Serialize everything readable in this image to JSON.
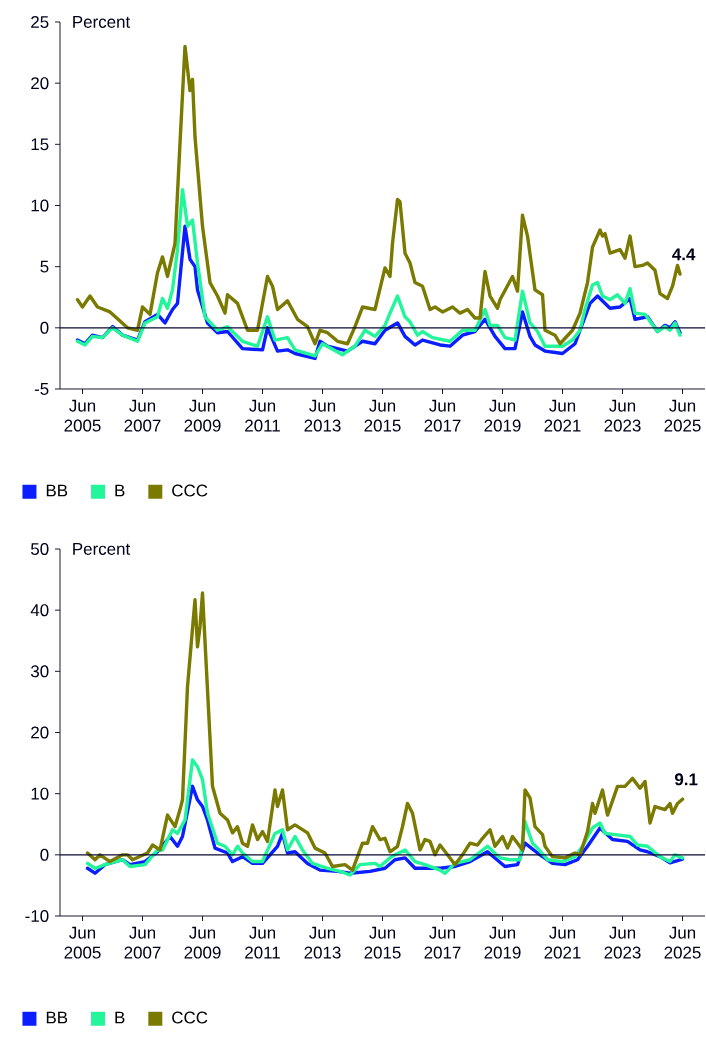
{
  "chart_data": [
    {
      "type": "line",
      "ylabel": "Percent",
      "legend": "bottom",
      "xlim": [
        "2004-09",
        "2026-03"
      ],
      "ylim": [
        -5,
        25
      ],
      "yticks": [
        -5,
        0,
        5,
        10,
        15,
        20,
        25
      ],
      "xticks": [
        {
          "value": "2005-06",
          "label": "Jun 2005"
        },
        {
          "value": "2007-06",
          "label": "Jun 2007"
        },
        {
          "value": "2009-06",
          "label": "Jun 2009"
        },
        {
          "value": "2011-06",
          "label": "Jun 2011"
        },
        {
          "value": "2013-06",
          "label": "Jun 2013"
        },
        {
          "value": "2015-06",
          "label": "Jun 2015"
        },
        {
          "value": "2017-06",
          "label": "Jun 2017"
        },
        {
          "value": "2019-06",
          "label": "Jun 2019"
        },
        {
          "value": "2021-06",
          "label": "Jun 2021"
        },
        {
          "value": "2023-06",
          "label": "Jun 2023"
        },
        {
          "value": "2025-06",
          "label": "Jun 2025"
        }
      ],
      "ref_lines": [
        {
          "axis": "y",
          "value": 0,
          "color": "#0a0a32"
        }
      ],
      "annotations": [
        {
          "text": "4.4",
          "x": "2025-05",
          "y": 4.4
        }
      ],
      "series": [
        {
          "name": "BB",
          "color": "#0a1eff",
          "x": [
            "2005-04",
            "2005-07",
            "2005-10",
            "2006-02",
            "2006-06",
            "2006-10",
            "2007-04",
            "2007-07",
            "2007-12",
            "2008-03",
            "2008-06",
            "2008-08",
            "2008-11",
            "2009-01",
            "2009-03",
            "2009-04",
            "2009-08",
            "2009-12",
            "2010-04",
            "2010-10",
            "2011-06",
            "2011-08",
            "2011-12",
            "2012-04",
            "2012-07",
            "2013-03",
            "2013-05",
            "2013-08",
            "2014-04",
            "2014-10",
            "2015-03",
            "2015-07",
            "2015-12",
            "2016-03",
            "2016-07",
            "2016-10",
            "2017-05",
            "2017-09",
            "2018-02",
            "2018-07",
            "2018-11",
            "2019-03",
            "2019-07",
            "2019-11",
            "2020-02",
            "2020-05",
            "2020-07",
            "2020-11",
            "2021-06",
            "2021-11",
            "2022-03",
            "2022-05",
            "2022-08",
            "2023-01",
            "2023-05",
            "2023-09",
            "2023-11",
            "2024-04",
            "2024-08",
            "2024-11",
            "2025-01",
            "2025-03",
            "2025-05"
          ],
          "values": [
            -1.0,
            -1.3,
            -0.6,
            -0.8,
            0.1,
            -0.6,
            -1.0,
            0.5,
            1.1,
            0.4,
            1.5,
            2.0,
            8.3,
            5.6,
            5.0,
            3.1,
            0.4,
            -0.4,
            -0.3,
            -1.7,
            -1.8,
            0,
            -1.9,
            -1.8,
            -2.1,
            -2.5,
            -1.1,
            -1.5,
            -1.9,
            -1.1,
            -1.3,
            -0.2,
            0.4,
            -0.7,
            -1.4,
            -1.0,
            -1.4,
            -1.5,
            -0.6,
            -0.3,
            0.7,
            -0.7,
            -1.7,
            -1.7,
            1.3,
            -0.7,
            -1.4,
            -1.9,
            -2.1,
            -1.3,
            0.9,
            2.0,
            2.6,
            1.6,
            1.7,
            2.4,
            0.7,
            0.9,
            -0.3,
            0.2,
            0,
            0.5,
            -0.4
          ]
        },
        {
          "name": "B",
          "color": "#22f59a",
          "x": [
            "2005-04",
            "2005-07",
            "2005-10",
            "2006-02",
            "2006-06",
            "2006-10",
            "2007-04",
            "2007-07",
            "2007-12",
            "2008-02",
            "2008-04",
            "2008-06",
            "2008-08",
            "2008-10",
            "2008-12",
            "2009-02",
            "2009-04",
            "2009-07",
            "2009-12",
            "2010-04",
            "2010-10",
            "2011-04",
            "2011-08",
            "2011-11",
            "2012-04",
            "2012-07",
            "2013-03",
            "2013-06",
            "2014-02",
            "2014-07",
            "2014-11",
            "2015-03",
            "2015-07",
            "2015-09",
            "2015-12",
            "2016-03",
            "2016-05",
            "2016-08",
            "2016-10",
            "2017-02",
            "2017-09",
            "2018-02",
            "2018-07",
            "2018-11",
            "2019-01",
            "2019-04",
            "2019-07",
            "2019-11",
            "2020-02",
            "2020-05",
            "2020-08",
            "2020-11",
            "2021-06",
            "2021-10",
            "2022-01",
            "2022-03",
            "2022-06",
            "2022-08",
            "2022-10",
            "2023-01",
            "2023-04",
            "2023-07",
            "2023-09",
            "2023-11",
            "2024-03",
            "2024-08",
            "2024-11",
            "2025-01",
            "2025-03",
            "2025-05"
          ],
          "values": [
            -1.1,
            -1.4,
            -0.7,
            -0.8,
            0,
            -0.6,
            -1.1,
            0.4,
            0.9,
            2.4,
            1.6,
            3.1,
            6.4,
            11.3,
            8.3,
            8.8,
            5.3,
            0.9,
            -0.2,
            0.1,
            -1.1,
            -1.5,
            0.9,
            -1.0,
            -0.8,
            -1.8,
            -2.3,
            -1.3,
            -2.2,
            -1.5,
            -0.2,
            -0.7,
            0.2,
            1.2,
            2.6,
            0.9,
            0.5,
            -0.6,
            -0.3,
            -0.8,
            -1.1,
            -0.2,
            -0.2,
            1.5,
            0.2,
            0.2,
            -0.8,
            -1.0,
            3.0,
            0.4,
            -0.3,
            -1.5,
            -1.5,
            -1.0,
            -0.2,
            1.5,
            3.5,
            3.7,
            2.6,
            2.3,
            2.7,
            2.0,
            3.2,
            1.2,
            1.1,
            -0.3,
            0.1,
            -0.2,
            0.4,
            -0.6
          ]
        },
        {
          "name": "CCC",
          "color": "#7a7a00",
          "x": [
            "2005-04",
            "2005-06",
            "2005-09",
            "2005-12",
            "2006-05",
            "2006-12",
            "2007-04",
            "2007-06",
            "2007-09",
            "2007-12",
            "2008-02",
            "2008-04",
            "2008-07",
            "2008-09",
            "2008-11",
            "2009-01",
            "2009-02",
            "2009-03",
            "2009-06",
            "2009-09",
            "2009-12",
            "2010-03",
            "2010-04",
            "2010-08",
            "2010-12",
            "2011-04",
            "2011-08",
            "2011-10",
            "2011-12",
            "2012-04",
            "2012-08",
            "2012-12",
            "2013-03",
            "2013-05",
            "2013-08",
            "2013-12",
            "2014-04",
            "2014-07",
            "2014-10",
            "2015-03",
            "2015-07",
            "2015-09",
            "2015-10",
            "2015-12",
            "2016-01",
            "2016-03",
            "2016-05",
            "2016-07",
            "2016-10",
            "2017-01",
            "2017-03",
            "2017-06",
            "2017-10",
            "2018-01",
            "2018-04",
            "2018-07",
            "2018-09",
            "2018-11",
            "2019-01",
            "2019-04",
            "2019-05",
            "2019-10",
            "2019-12",
            "2020-02",
            "2020-04",
            "2020-07",
            "2020-10",
            "2020-11",
            "2021-03",
            "2021-05",
            "2021-10",
            "2022-01",
            "2022-04",
            "2022-06",
            "2022-09",
            "2022-10",
            "2022-11",
            "2023-01",
            "2023-05",
            "2023-07",
            "2023-09",
            "2023-11",
            "2024-02",
            "2024-04",
            "2024-07",
            "2024-09",
            "2024-12",
            "2025-02",
            "2025-04",
            "2025-05"
          ],
          "values": [
            2.3,
            1.7,
            2.6,
            1.7,
            1.3,
            0,
            -0.2,
            1.7,
            1.1,
            4.5,
            5.8,
            4.2,
            6.9,
            15.1,
            23.0,
            19.4,
            20.3,
            15.6,
            8.3,
            3.7,
            2.6,
            1.2,
            2.7,
            2.0,
            -0.2,
            -0.2,
            4.2,
            3.4,
            1.5,
            2.2,
            0.7,
            0.1,
            -1.3,
            -0.2,
            -0.4,
            -1.1,
            -1.3,
            0.1,
            1.7,
            1.5,
            4.9,
            4.2,
            6.9,
            10.5,
            10.3,
            6.1,
            5.3,
            3.7,
            3.4,
            1.5,
            1.7,
            1.3,
            1.7,
            1.2,
            1.5,
            0.8,
            0.8,
            4.6,
            2.6,
            1.6,
            2.3,
            4.2,
            3.0,
            9.2,
            7.5,
            3.1,
            2.7,
            -0.2,
            -0.6,
            -1.3,
            -0.2,
            1.2,
            3.7,
            6.6,
            8.0,
            7.5,
            7.7,
            6.1,
            6.4,
            5.7,
            7.5,
            5.0,
            5.1,
            5.3,
            4.7,
            2.8,
            2.4,
            3.4,
            5.1,
            4.4
          ]
        }
      ]
    },
    {
      "type": "line",
      "ylabel": "Percent",
      "legend": "bottom",
      "xlim": [
        "2004-09",
        "2026-03"
      ],
      "ylim": [
        -10,
        50
      ],
      "yticks": [
        -10,
        0,
        10,
        20,
        30,
        40,
        50
      ],
      "xticks": [
        {
          "value": "2005-06",
          "label": "Jun 2005"
        },
        {
          "value": "2007-06",
          "label": "Jun 2007"
        },
        {
          "value": "2009-06",
          "label": "Jun 2009"
        },
        {
          "value": "2011-06",
          "label": "Jun 2011"
        },
        {
          "value": "2013-06",
          "label": "Jun 2013"
        },
        {
          "value": "2015-06",
          "label": "Jun 2015"
        },
        {
          "value": "2017-06",
          "label": "Jun 2017"
        },
        {
          "value": "2019-06",
          "label": "Jun 2019"
        },
        {
          "value": "2021-06",
          "label": "Jun 2021"
        },
        {
          "value": "2023-06",
          "label": "Jun 2023"
        },
        {
          "value": "2025-06",
          "label": "Jun 2025"
        }
      ],
      "ref_lines": [
        {
          "axis": "y",
          "value": 0,
          "color": "#0a0a32"
        }
      ],
      "annotations": [
        {
          "text": "9.1",
          "x": "2025-06",
          "y": 9.1
        }
      ],
      "series": [
        {
          "name": "BB",
          "color": "#0a1eff",
          "x": [
            "2005-08",
            "2005-11",
            "2006-03",
            "2006-10",
            "2007-01",
            "2007-07",
            "2007-12",
            "2008-05",
            "2008-08",
            "2008-10",
            "2009-02",
            "2009-04",
            "2009-06",
            "2009-08",
            "2009-11",
            "2010-04",
            "2010-06",
            "2010-10",
            "2011-02",
            "2011-06",
            "2011-12",
            "2012-02",
            "2012-04",
            "2012-07",
            "2012-12",
            "2013-05",
            "2013-12",
            "2014-05",
            "2015-01",
            "2015-07",
            "2015-11",
            "2016-03",
            "2016-07",
            "2016-11",
            "2017-05",
            "2017-11",
            "2018-05",
            "2018-12",
            "2019-07",
            "2019-12",
            "2020-03",
            "2020-08",
            "2021-02",
            "2021-07",
            "2021-12",
            "2022-04",
            "2022-09",
            "2023-02",
            "2023-08",
            "2024-01",
            "2024-04",
            "2024-09",
            "2025-01",
            "2025-06"
          ],
          "values": [
            -2.2,
            -3.0,
            -1.6,
            -0.8,
            -1.6,
            -1.1,
            0.5,
            3.0,
            1.4,
            3.0,
            11.2,
            9.0,
            7.9,
            5.7,
            1.1,
            0.3,
            -1.1,
            -0.3,
            -1.4,
            -1.4,
            1.4,
            3.5,
            0.3,
            0.5,
            -1.4,
            -2.5,
            -2.7,
            -3.0,
            -2.7,
            -2.2,
            -0.8,
            -0.5,
            -2.2,
            -2.2,
            -2.2,
            -1.9,
            -1.1,
            0.5,
            -1.9,
            -1.6,
            1.9,
            0.3,
            -1.4,
            -1.6,
            -0.8,
            1.4,
            4.4,
            2.5,
            2.2,
            0.8,
            0.5,
            -0.3,
            -1.3,
            -0.7
          ]
        },
        {
          "name": "B",
          "color": "#22f59a",
          "x": [
            "2005-08",
            "2005-11",
            "2006-03",
            "2006-10",
            "2007-01",
            "2007-07",
            "2007-12",
            "2008-02",
            "2008-06",
            "2008-08",
            "2008-11",
            "2009-02",
            "2009-04",
            "2009-06",
            "2009-08",
            "2009-12",
            "2010-03",
            "2010-06",
            "2010-08",
            "2010-10",
            "2011-02",
            "2011-06",
            "2011-11",
            "2012-02",
            "2012-04",
            "2012-07",
            "2012-10",
            "2013-02",
            "2013-08",
            "2014-01",
            "2014-05",
            "2014-09",
            "2015-03",
            "2015-05",
            "2015-09",
            "2015-11",
            "2016-03",
            "2016-07",
            "2016-11",
            "2017-05",
            "2017-07",
            "2017-11",
            "2018-05",
            "2018-12",
            "2019-05",
            "2019-09",
            "2020-01",
            "2020-03",
            "2020-06",
            "2020-08",
            "2020-12",
            "2021-06",
            "2021-11",
            "2022-02",
            "2022-06",
            "2022-09",
            "2022-11",
            "2023-03",
            "2023-09",
            "2023-12",
            "2024-04",
            "2024-09",
            "2025-01",
            "2025-03",
            "2025-06"
          ],
          "values": [
            -1.4,
            -2.2,
            -1.6,
            -0.8,
            -1.9,
            -1.6,
            0.8,
            0.8,
            4.1,
            3.5,
            5.7,
            15.5,
            14.4,
            12.3,
            6.8,
            1.9,
            1.4,
            0,
            1.4,
            0.3,
            -1.1,
            -1.1,
            3.5,
            4.1,
            0.8,
            3.0,
            0.8,
            -1.4,
            -2.2,
            -2.7,
            -3.3,
            -1.6,
            -1.4,
            -1.9,
            -0.5,
            0,
            0.8,
            -1.1,
            -1.6,
            -2.5,
            -3.0,
            -1.4,
            -0.8,
            1.4,
            -0.5,
            -0.8,
            -0.8,
            5.4,
            1.9,
            1.1,
            -0.8,
            -1.1,
            -0.3,
            1.4,
            4.4,
            5.2,
            3.5,
            3.3,
            3.0,
            1.6,
            1.4,
            -0.3,
            -1.1,
            0,
            -0.5
          ]
        },
        {
          "name": "CCC",
          "color": "#7a7a00",
          "x": [
            "2005-08",
            "2005-11",
            "2006-01",
            "2006-05",
            "2006-10",
            "2006-12",
            "2007-02",
            "2007-08",
            "2007-10",
            "2008-01",
            "2008-04",
            "2008-07",
            "2008-09",
            "2008-10",
            "2008-12",
            "2009-03",
            "2009-04",
            "2009-05",
            "2009-06",
            "2009-08",
            "2009-10",
            "2010-01",
            "2010-04",
            "2010-06",
            "2010-08",
            "2010-10",
            "2010-12",
            "2011-02",
            "2011-04",
            "2011-06",
            "2011-08",
            "2011-11",
            "2011-12",
            "2012-02",
            "2012-04",
            "2012-07",
            "2012-12",
            "2013-03",
            "2013-07",
            "2013-10",
            "2014-03",
            "2014-06",
            "2014-10",
            "2014-12",
            "2015-02",
            "2015-05",
            "2015-07",
            "2015-09",
            "2015-12",
            "2016-02",
            "2016-04",
            "2016-06",
            "2016-09",
            "2016-11",
            "2017-01",
            "2017-03",
            "2017-05",
            "2017-08",
            "2017-11",
            "2018-02",
            "2018-05",
            "2018-08",
            "2018-10",
            "2019-01",
            "2019-03",
            "2019-06",
            "2019-08",
            "2019-10",
            "2020-02",
            "2020-03",
            "2020-05",
            "2020-07",
            "2020-10",
            "2020-11",
            "2021-02",
            "2021-07",
            "2021-11",
            "2022-01",
            "2022-04",
            "2022-06",
            "2022-07",
            "2022-10",
            "2022-12",
            "2023-04",
            "2023-07",
            "2023-10",
            "2024-01",
            "2024-03",
            "2024-05",
            "2024-07",
            "2024-11",
            "2025-01",
            "2025-02",
            "2025-04",
            "2025-06"
          ],
          "values": [
            0.3,
            -0.8,
            0,
            -1.1,
            0,
            0,
            -0.8,
            0.3,
            1.6,
            0.8,
            6.5,
            4.6,
            7.4,
            9.0,
            27.5,
            41.7,
            34.0,
            37.3,
            42.8,
            27.0,
            11.2,
            6.8,
            5.7,
            3.6,
            4.6,
            1.9,
            1.4,
            4.9,
            2.5,
            3.8,
            2.2,
            10.6,
            7.9,
            10.6,
            4.1,
            4.9,
            3.6,
            1.1,
            0.3,
            -1.9,
            -1.6,
            -2.5,
            1.9,
            1.9,
            4.6,
            2.5,
            2.7,
            0.5,
            1.4,
            4.6,
            8.4,
            6.8,
            0.8,
            2.5,
            2.2,
            0,
            1.6,
            0,
            -1.6,
            0,
            1.9,
            1.6,
            2.7,
            4.1,
            1.4,
            3.0,
            1.1,
            3.0,
            0.8,
            10.6,
            9.3,
            4.6,
            3.3,
            1.4,
            -0.3,
            -0.5,
            0.3,
            0,
            3.8,
            8.4,
            6.8,
            10.6,
            6.5,
            11.2,
            11.2,
            12.5,
            10.9,
            12.0,
            5.2,
            7.9,
            7.4,
            8.4,
            6.8,
            8.4,
            9.1
          ]
        }
      ]
    }
  ]
}
